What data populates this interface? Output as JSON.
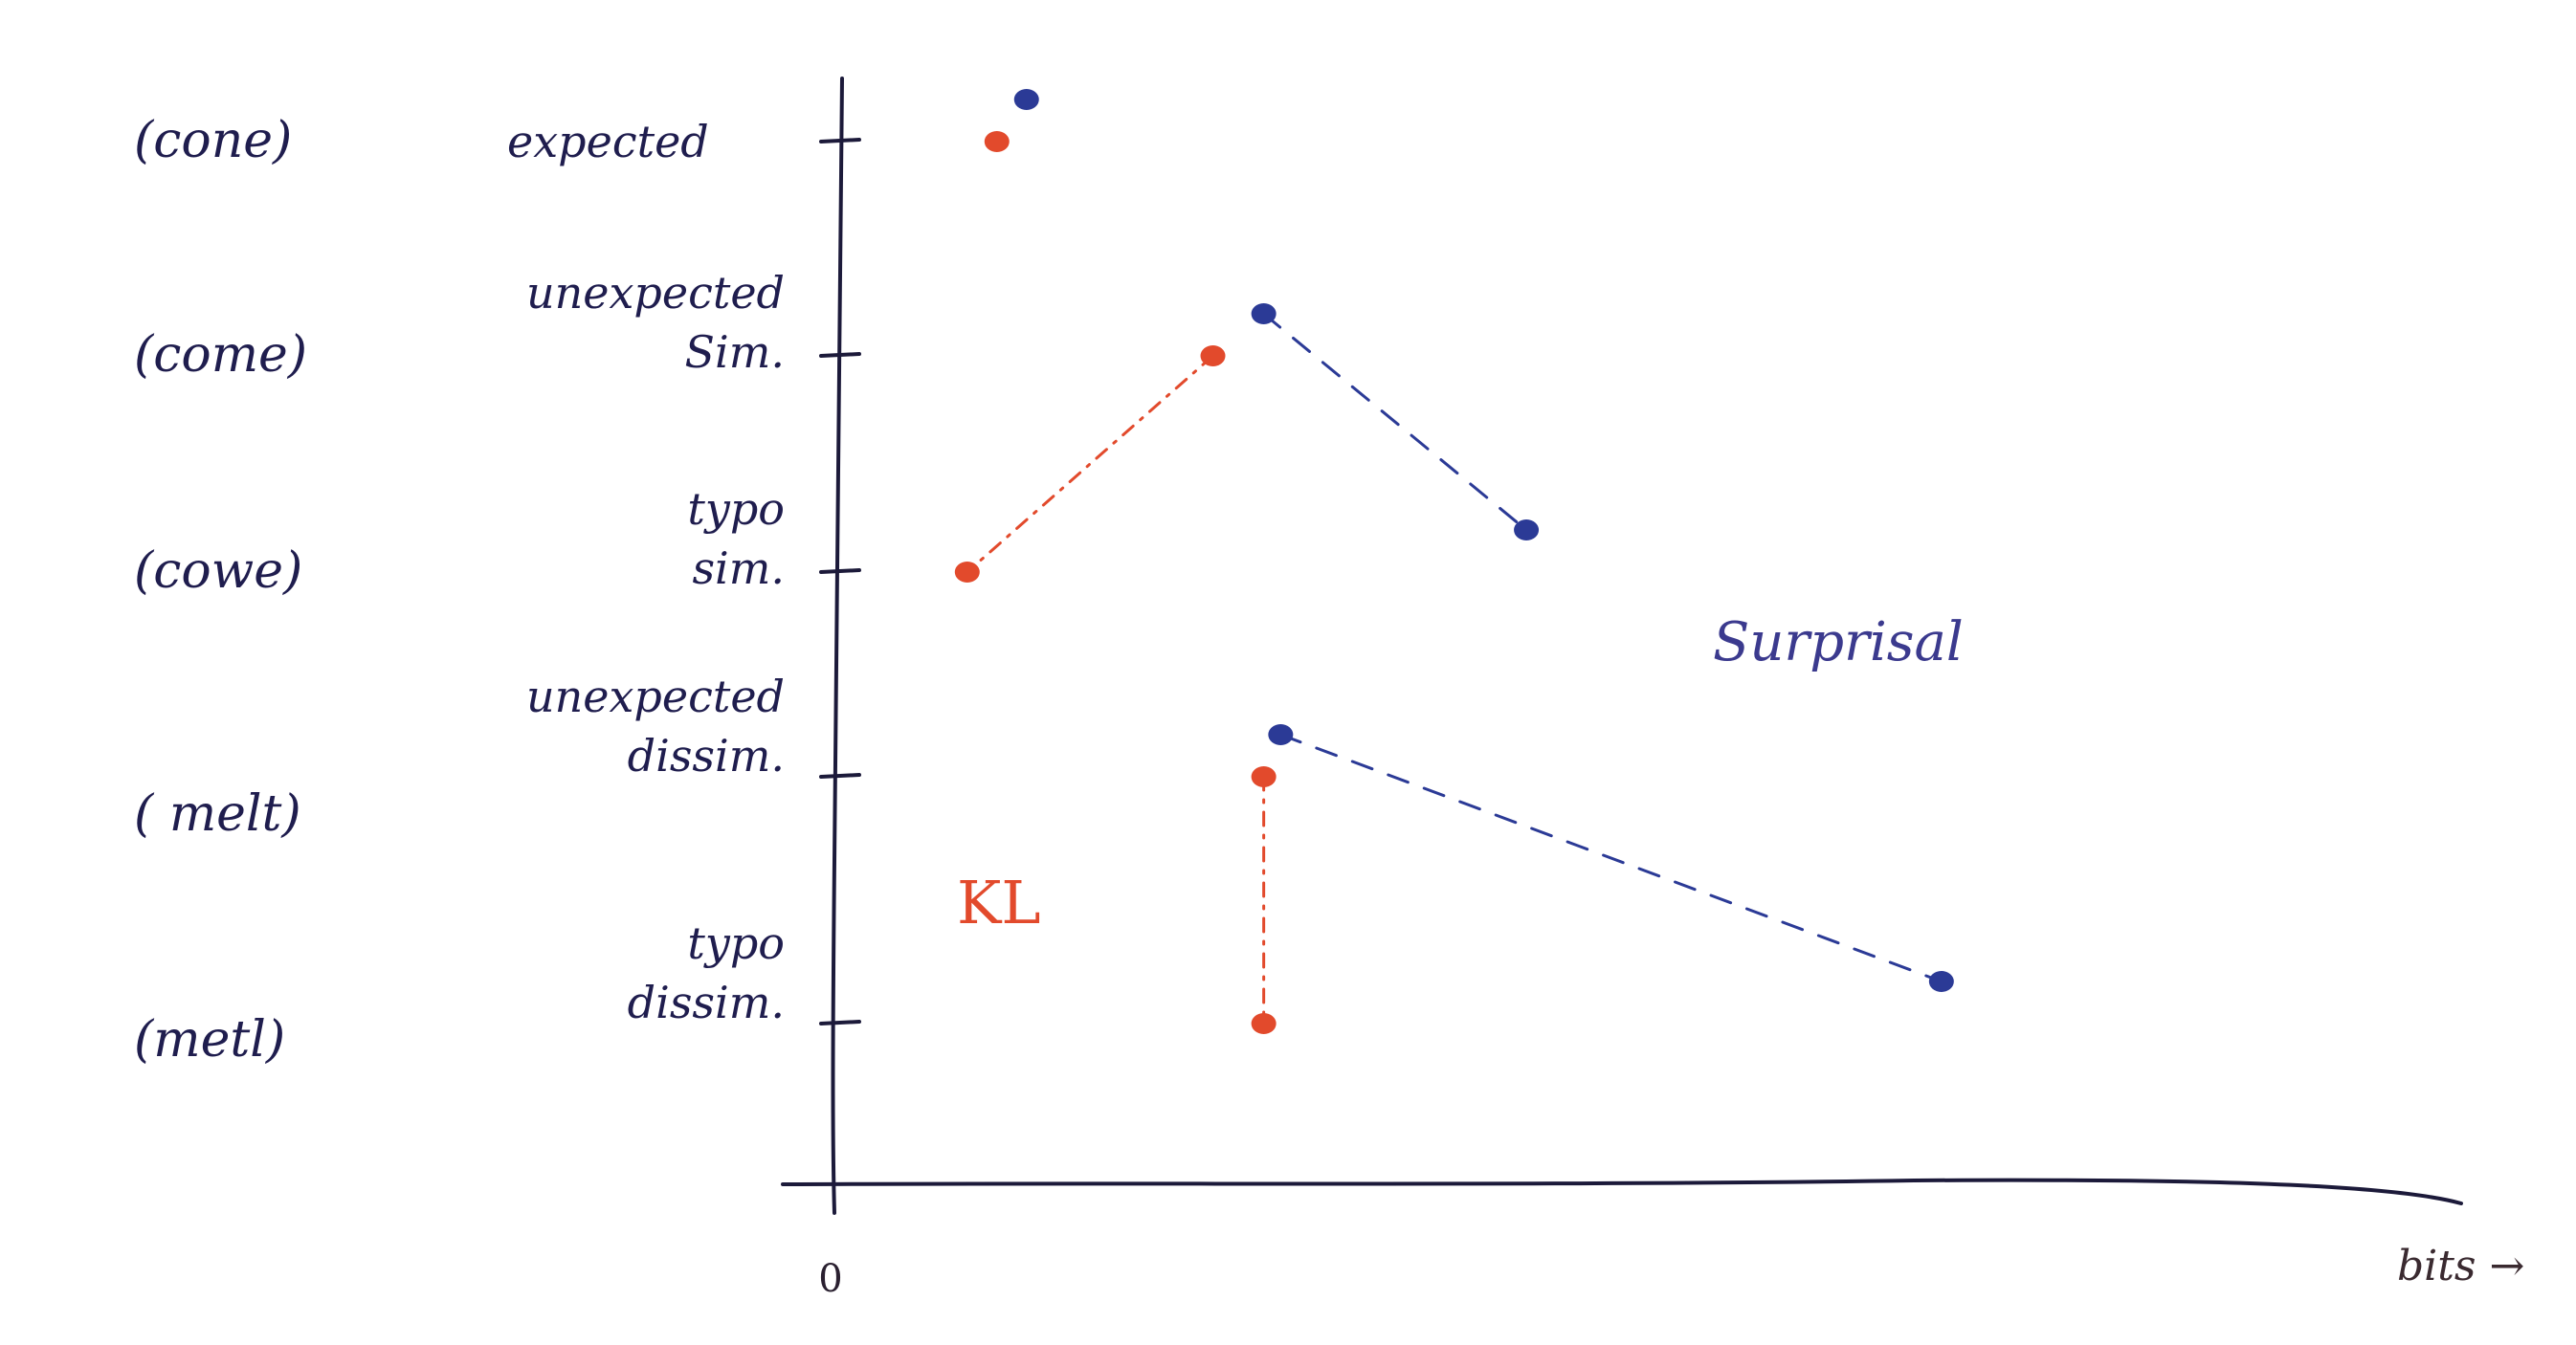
{
  "chart_data": {
    "type": "scatter",
    "rows": [
      {
        "word": "(cone)",
        "condition": [
          "expected"
        ]
      },
      {
        "word": "(come)",
        "condition": [
          "unexpected",
          "Sim."
        ]
      },
      {
        "word": "(cowe)",
        "condition": [
          "typo",
          "sim."
        ]
      },
      {
        "word": "( melt)",
        "condition": [
          "unexpected",
          "dissim."
        ]
      },
      {
        "word": "(metl)",
        "condition": [
          "typo",
          "dissim."
        ]
      }
    ],
    "series": [
      {
        "name": "Surprisal",
        "color": "#2b3a96",
        "points": [
          {
            "row": 0,
            "x": 0.44
          },
          {
            "row": 1,
            "x": 1.0
          },
          {
            "row": 2,
            "x": 1.62
          },
          {
            "row": 3,
            "x": 1.04
          },
          {
            "row": 4,
            "x": 2.6
          }
        ],
        "connect": [
          [
            1,
            2
          ],
          [
            3,
            4
          ]
        ]
      },
      {
        "name": "KL",
        "color": "#e24a2c",
        "points": [
          {
            "row": 0,
            "x": 0.37
          },
          {
            "row": 1,
            "x": 0.88
          },
          {
            "row": 2,
            "x": 0.3
          },
          {
            "row": 3,
            "x": 1.0
          },
          {
            "row": 4,
            "x": 1.0
          }
        ],
        "connect": [
          [
            1,
            2
          ],
          [
            3,
            4
          ]
        ]
      }
    ],
    "xlabel": "bits →",
    "x_origin_label": "0",
    "xlim": [
      0,
      3.8
    ],
    "grid": false,
    "legend": "inline labels"
  }
}
